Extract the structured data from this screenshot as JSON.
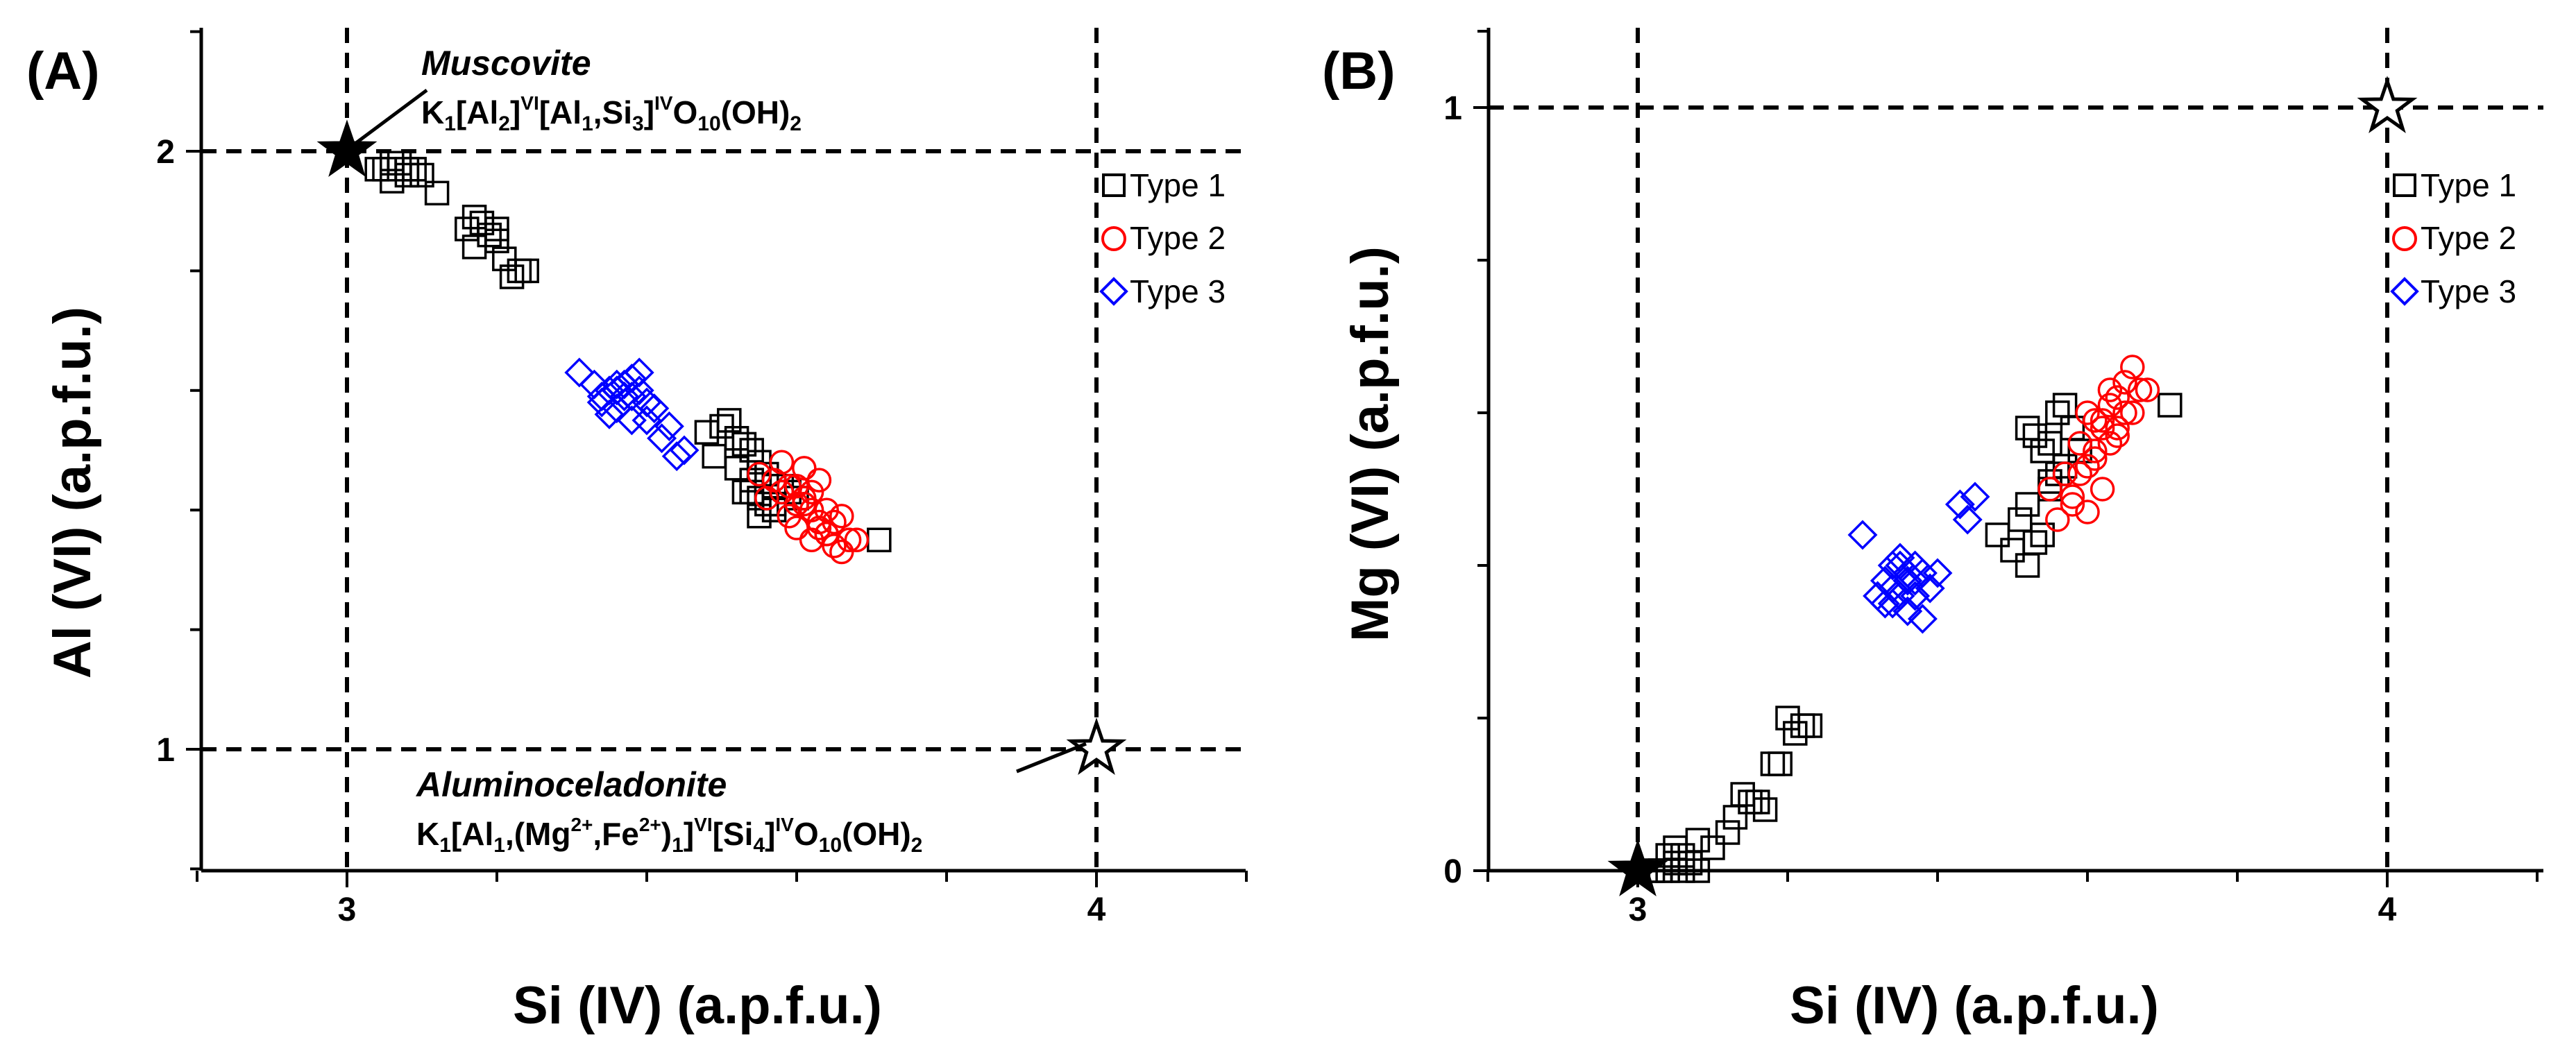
{
  "chart_data": [
    {
      "type": "scatter",
      "panel_label": "(A)",
      "xlabel": "Si (IV) (a.p.f.u.)",
      "ylabel": "Al (VI) (a.p.f.u.)",
      "xlim": [
        2.8,
        4.2
      ],
      "ylim": [
        0.8,
        2.2
      ],
      "xticks": [
        3,
        4
      ],
      "yticks": [
        1,
        2
      ],
      "xtick_labels": [
        "3",
        "4"
      ],
      "ytick_labels": [
        "1",
        "2"
      ],
      "xminor": [
        2.8,
        3.2,
        3.4,
        3.6,
        3.8,
        4.2
      ],
      "yminor": [
        0.8,
        1.2,
        1.4,
        1.6,
        1.8,
        2.2
      ],
      "reference_lines": {
        "x": [
          3,
          4
        ],
        "y": [
          1,
          2
        ]
      },
      "legend": {
        "position": "top-right",
        "entries": [
          "Type 1",
          "Type 2",
          "Type 3"
        ]
      },
      "end_members": [
        {
          "name": "Muscovite",
          "x": 3,
          "y": 2,
          "filled": true
        },
        {
          "name": "Aluminoceladonite",
          "x": 4,
          "y": 1,
          "filled": false
        }
      ],
      "annotations": {
        "muscovite_name": "Muscovite",
        "muscovite_formula": "K1[Al2]VI[Al1,Si3]IVO10(OH)2",
        "aluminoceladonite_name": "Aluminoceladonite",
        "aluminoceladonite_formula": "K1[Al1,(Mg2+,Fe2+)1]VI[Si4]IVO10(OH)2"
      },
      "series": [
        {
          "name": "Type 1",
          "marker": "square",
          "color": "#000000",
          "x": [
            3.05,
            3.07,
            3.08,
            3.06,
            3.09,
            3.04,
            3.1,
            3.06,
            3.08,
            3.12,
            3.17,
            3.16,
            3.18,
            3.19,
            3.2,
            3.17,
            3.2,
            3.22,
            3.23,
            3.21,
            3.24,
            3.48,
            3.5,
            3.52,
            3.51,
            3.53,
            3.49,
            3.54,
            3.55,
            3.52,
            3.56,
            3.54,
            3.57,
            3.53,
            3.55,
            3.58,
            3.56,
            3.54,
            3.57,
            3.6,
            3.55,
            3.57,
            3.59,
            3.71
          ],
          "y": [
            1.97,
            1.98,
            1.96,
            1.95,
            1.97,
            1.97,
            1.96,
            1.98,
            1.97,
            1.93,
            1.89,
            1.87,
            1.88,
            1.86,
            1.85,
            1.84,
            1.87,
            1.79,
            1.8,
            1.82,
            1.8,
            1.53,
            1.54,
            1.52,
            1.55,
            1.51,
            1.49,
            1.5,
            1.48,
            1.47,
            1.46,
            1.45,
            1.44,
            1.43,
            1.42,
            1.44,
            1.41,
            1.43,
            1.4,
            1.42,
            1.39,
            1.41,
            1.43,
            1.35
          ]
        },
        {
          "name": "Type 2",
          "marker": "circle",
          "color": "#ff0000",
          "x": [
            3.55,
            3.57,
            3.58,
            3.6,
            3.61,
            3.62,
            3.59,
            3.6,
            3.63,
            3.61,
            3.64,
            3.62,
            3.65,
            3.63,
            3.66,
            3.64,
            3.67,
            3.62,
            3.65,
            3.68,
            3.6,
            3.58,
            3.63,
            3.61,
            3.66,
            3.64,
            3.56,
            3.59
          ],
          "y": [
            1.46,
            1.45,
            1.43,
            1.44,
            1.41,
            1.4,
            1.39,
            1.37,
            1.38,
            1.42,
            1.36,
            1.35,
            1.34,
            1.37,
            1.33,
            1.4,
            1.35,
            1.43,
            1.38,
            1.35,
            1.41,
            1.48,
            1.45,
            1.47,
            1.39,
            1.36,
            1.42,
            1.44
          ]
        },
        {
          "name": "Type 3",
          "marker": "diamond",
          "color": "#0000ff",
          "x": [
            3.31,
            3.33,
            3.35,
            3.34,
            3.36,
            3.37,
            3.38,
            3.39,
            3.36,
            3.38,
            3.4,
            3.37,
            3.35,
            3.39,
            3.41,
            3.38,
            3.34,
            3.36,
            3.4,
            3.42,
            3.44,
            3.45,
            3.43
          ],
          "y": [
            1.63,
            1.61,
            1.6,
            1.58,
            1.61,
            1.59,
            1.62,
            1.6,
            1.57,
            1.59,
            1.58,
            1.61,
            1.56,
            1.63,
            1.57,
            1.55,
            1.59,
            1.6,
            1.55,
            1.52,
            1.49,
            1.5,
            1.54
          ]
        }
      ]
    },
    {
      "type": "scatter",
      "panel_label": "(B)",
      "xlabel": "Si (IV) (a.p.f.u.)",
      "ylabel": "Mg (VI) (a.p.f.u.)",
      "xlim": [
        2.8,
        4.2
      ],
      "ylim": [
        0,
        1.1
      ],
      "xticks": [
        3,
        4
      ],
      "yticks": [
        0,
        1
      ],
      "xtick_labels": [
        "3",
        "4"
      ],
      "ytick_labels": [
        "0",
        "1"
      ],
      "xminor": [
        2.8,
        3.2,
        3.4,
        3.6,
        3.8,
        4.2
      ],
      "yminor": [
        0.2,
        0.4,
        0.6,
        0.8,
        1.1
      ],
      "reference_lines": {
        "x": [
          3,
          4
        ],
        "y": [
          1
        ]
      },
      "legend": {
        "position": "top-right",
        "entries": [
          "Type 1",
          "Type 2",
          "Type 3"
        ]
      },
      "end_members": [
        {
          "name": "Muscovite",
          "x": 3,
          "y": 0,
          "filled": true
        },
        {
          "name": "Aluminoceladonite",
          "x": 4,
          "y": 1,
          "filled": false
        }
      ],
      "series": [
        {
          "name": "Type 1",
          "marker": "square",
          "color": "#000000",
          "x": [
            3.02,
            3.03,
            3.04,
            3.05,
            3.06,
            3.07,
            3.08,
            3.04,
            3.06,
            3.05,
            3.08,
            3.1,
            3.12,
            3.13,
            3.15,
            3.16,
            3.17,
            3.14,
            3.18,
            3.2,
            3.21,
            3.22,
            3.23,
            3.19,
            3.48,
            3.5,
            3.52,
            3.53,
            3.51,
            3.54,
            3.52,
            3.55,
            3.56,
            3.54,
            3.53,
            3.57,
            3.55,
            3.56,
            3.52,
            3.58,
            3.57,
            3.55,
            3.59,
            3.71
          ],
          "y": [
            0,
            0,
            0,
            0.01,
            0,
            0.01,
            0,
            0.02,
            0.02,
            0.03,
            0.04,
            0.03,
            0.05,
            0.07,
            0.09,
            0.09,
            0.08,
            0.1,
            0.14,
            0.2,
            0.18,
            0.19,
            0.19,
            0.14,
            0.44,
            0.42,
            0.4,
            0.43,
            0.46,
            0.44,
            0.48,
            0.5,
            0.52,
            0.55,
            0.57,
            0.53,
            0.56,
            0.6,
            0.58,
            0.58,
            0.61,
            0.51,
            0.55,
            0.61
          ]
        },
        {
          "name": "Type 2",
          "marker": "circle",
          "color": "#ff0000",
          "x": [
            3.55,
            3.57,
            3.58,
            3.6,
            3.61,
            3.62,
            3.59,
            3.6,
            3.63,
            3.61,
            3.64,
            3.62,
            3.65,
            3.63,
            3.66,
            3.64,
            3.67,
            3.62,
            3.65,
            3.68,
            3.6,
            3.58,
            3.63,
            3.61,
            3.66,
            3.64,
            3.56,
            3.59
          ],
          "y": [
            0.5,
            0.52,
            0.48,
            0.53,
            0.55,
            0.58,
            0.56,
            0.6,
            0.61,
            0.54,
            0.62,
            0.59,
            0.64,
            0.63,
            0.66,
            0.57,
            0.63,
            0.5,
            0.6,
            0.63,
            0.47,
            0.49,
            0.56,
            0.59,
            0.6,
            0.58,
            0.46,
            0.52
          ]
        },
        {
          "name": "Type 3",
          "marker": "diamond",
          "color": "#0000ff",
          "x": [
            3.3,
            3.32,
            3.33,
            3.34,
            3.35,
            3.36,
            3.37,
            3.38,
            3.36,
            3.35,
            3.39,
            3.37,
            3.34,
            3.36,
            3.38,
            3.4,
            3.37,
            3.33,
            3.35,
            3.43,
            3.44,
            3.45,
            3.34
          ],
          "y": [
            0.44,
            0.36,
            0.38,
            0.37,
            0.4,
            0.38,
            0.36,
            0.39,
            0.34,
            0.41,
            0.37,
            0.4,
            0.35,
            0.39,
            0.33,
            0.39,
            0.38,
            0.35,
            0.36,
            0.48,
            0.46,
            0.49,
            0.4
          ]
        }
      ]
    }
  ]
}
